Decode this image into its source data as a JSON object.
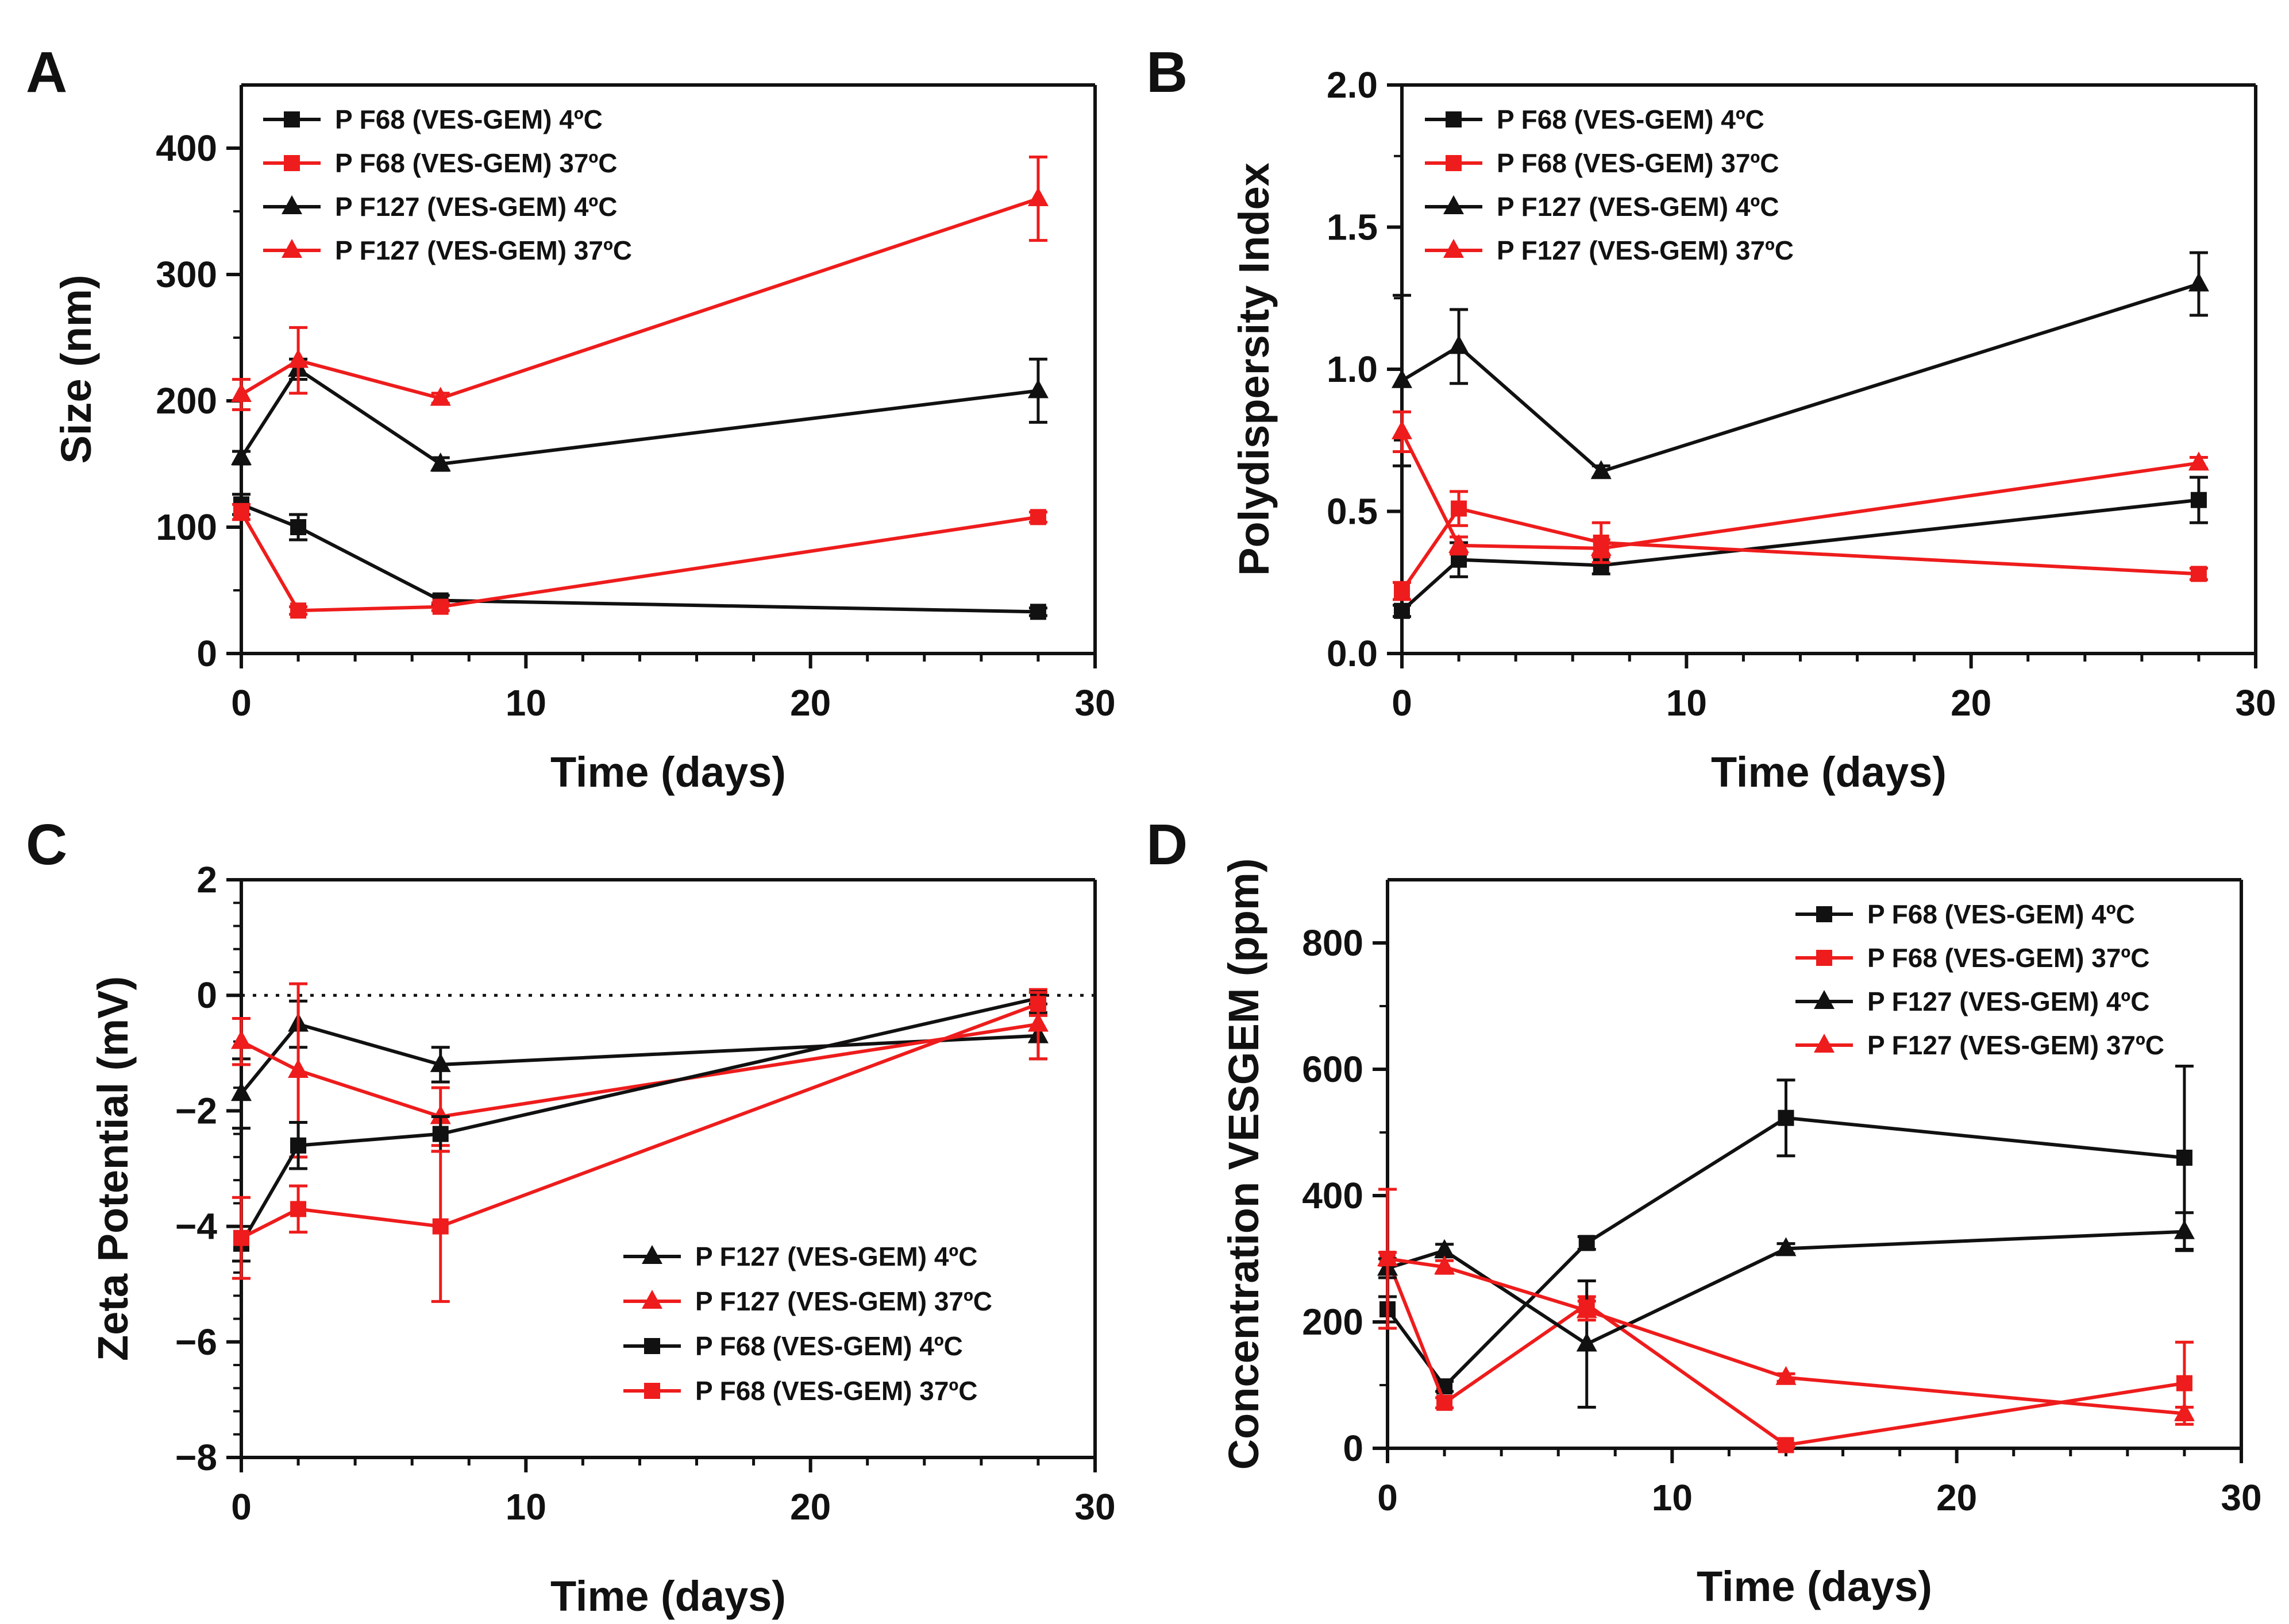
{
  "figure": {
    "colors": {
      "black": "#111111",
      "red": "#ee1c1c"
    }
  },
  "chart_data": [
    {
      "panel": "A",
      "type": "line",
      "title": "",
      "xlabel": "Time (days)",
      "ylabel": "Size (nm)",
      "xlim": [
        0,
        30
      ],
      "ylim": [
        0,
        450
      ],
      "xticks": [
        0,
        10,
        20,
        30
      ],
      "yticks": [
        0,
        100,
        200,
        300,
        400
      ],
      "zero_line": false,
      "legend_position": "top-left",
      "series": [
        {
          "name": "P F68 (VES-GEM) 4ºC",
          "color": "#111111",
          "marker": "square",
          "x": [
            0,
            2,
            7,
            28
          ],
          "y": [
            118,
            100,
            42,
            33
          ],
          "err": [
            8,
            10,
            4,
            3
          ]
        },
        {
          "name": "P F68 (VES-GEM) 37ºC",
          "color": "#ee1c1c",
          "marker": "square",
          "x": [
            0,
            2,
            7,
            28
          ],
          "y": [
            112,
            34,
            37,
            108
          ],
          "err": [
            6,
            3,
            3,
            4
          ]
        },
        {
          "name": "P F127 (VES-GEM) 4ºC",
          "color": "#111111",
          "marker": "triangle",
          "x": [
            0,
            2,
            7,
            28
          ],
          "y": [
            155,
            225,
            150,
            208
          ],
          "err": [
            5,
            8,
            5,
            25
          ]
        },
        {
          "name": "P F127 (VES-GEM) 37ºC",
          "color": "#ee1c1c",
          "marker": "triangle",
          "x": [
            0,
            2,
            7,
            28
          ],
          "y": [
            205,
            232,
            202,
            360
          ],
          "err": [
            12,
            26,
            4,
            33
          ]
        }
      ]
    },
    {
      "panel": "B",
      "type": "line",
      "title": "",
      "xlabel": "Time (days)",
      "ylabel": "Polydispersity Index",
      "xlim": [
        0,
        30
      ],
      "ylim": [
        0,
        2.0
      ],
      "xticks": [
        0,
        10,
        20,
        30
      ],
      "yticks": [
        0.0,
        0.5,
        1.0,
        1.5,
        2.0
      ],
      "zero_line": false,
      "legend_position": "top-left",
      "series": [
        {
          "name": "P F68 (VES-GEM) 4ºC",
          "color": "#111111",
          "marker": "square",
          "x": [
            0,
            2,
            7,
            28
          ],
          "y": [
            0.15,
            0.33,
            0.31,
            0.54
          ],
          "err": [
            0.02,
            0.06,
            0.03,
            0.08
          ]
        },
        {
          "name": "P F68 (VES-GEM) 37ºC",
          "color": "#ee1c1c",
          "marker": "square",
          "x": [
            0,
            2,
            7,
            28
          ],
          "y": [
            0.22,
            0.51,
            0.39,
            0.28
          ],
          "err": [
            0.03,
            0.06,
            0.07,
            0.02
          ]
        },
        {
          "name": "P F127 (VES-GEM) 4ºC",
          "color": "#111111",
          "marker": "triangle",
          "x": [
            0,
            2,
            7,
            28
          ],
          "y": [
            0.96,
            1.08,
            0.64,
            1.3
          ],
          "err": [
            0.3,
            0.13,
            0.02,
            0.11
          ]
        },
        {
          "name": "P F127 (VES-GEM) 37ºC",
          "color": "#ee1c1c",
          "marker": "triangle",
          "x": [
            0,
            2,
            7,
            28
          ],
          "y": [
            0.78,
            0.38,
            0.37,
            0.67
          ],
          "err": [
            0.07,
            0.03,
            0.03,
            0.02
          ]
        }
      ]
    },
    {
      "panel": "C",
      "type": "line",
      "title": "",
      "xlabel": "Time (days)",
      "ylabel": "Zeta Potential (mV)",
      "xlim": [
        0,
        30
      ],
      "ylim": [
        -8,
        2
      ],
      "xticks": [
        0,
        10,
        20,
        30
      ],
      "yticks": [
        -8,
        -6,
        -4,
        -2,
        0,
        2
      ],
      "ytick_labels": [
        "−8",
        "−6",
        "−4",
        "−2",
        "0",
        "2"
      ],
      "zero_line": true,
      "legend_position": "bottom-right",
      "series": [
        {
          "name": "P F127 (VES-GEM) 4ºC",
          "color": "#111111",
          "marker": "triangle",
          "x": [
            0,
            2,
            7,
            28
          ],
          "y": [
            -1.7,
            -0.5,
            -1.2,
            -0.7
          ],
          "err": [
            0.6,
            0.4,
            0.3,
            0.4
          ]
        },
        {
          "name": "P F127 (VES-GEM) 37ºC",
          "color": "#ee1c1c",
          "marker": "triangle",
          "x": [
            0,
            2,
            7,
            28
          ],
          "y": [
            -0.8,
            -1.3,
            -2.1,
            -0.5
          ],
          "err": [
            0.4,
            1.5,
            0.5,
            0.6
          ]
        },
        {
          "name": "P F68 (VES-GEM) 4ºC",
          "color": "#111111",
          "marker": "square",
          "x": [
            0,
            2,
            7,
            28
          ],
          "y": [
            -4.3,
            -2.6,
            -2.4,
            -0.05
          ],
          "err": [
            0.3,
            0.4,
            0.3,
            0.1
          ]
        },
        {
          "name": "P F68 (VES-GEM) 37ºC",
          "color": "#ee1c1c",
          "marker": "square",
          "x": [
            0,
            2,
            7,
            28
          ],
          "y": [
            -4.2,
            -3.7,
            -4.0,
            -0.15
          ],
          "err": [
            0.7,
            0.4,
            1.3,
            0.2
          ]
        }
      ]
    },
    {
      "panel": "D",
      "type": "line",
      "title": "",
      "xlabel": "Time (days)",
      "ylabel": "Concentration VESGEM (ppm)",
      "xlim": [
        0,
        30
      ],
      "ylim": [
        0,
        900
      ],
      "xticks": [
        0,
        10,
        20,
        30
      ],
      "yticks": [
        0,
        200,
        400,
        600,
        800
      ],
      "zero_line": false,
      "legend_position": "top-right",
      "series": [
        {
          "name": "P F68 (VES-GEM) 4ºC",
          "color": "#111111",
          "marker": "square",
          "x": [
            0,
            2,
            7,
            14,
            28
          ],
          "y": [
            220,
            98,
            325,
            523,
            460
          ],
          "err": [
            20,
            8,
            10,
            60,
            145
          ]
        },
        {
          "name": "P F68 (VES-GEM) 37ºC",
          "color": "#ee1c1c",
          "marker": "square",
          "x": [
            0,
            2,
            7,
            14,
            28
          ],
          "y": [
            300,
            72,
            228,
            5,
            103
          ],
          "err": [
            10,
            8,
            12,
            3,
            65
          ]
        },
        {
          "name": "P F127 (VES-GEM) 4ºC",
          "color": "#111111",
          "marker": "triangle",
          "x": [
            0,
            2,
            7,
            14,
            28
          ],
          "y": [
            285,
            313,
            165,
            316,
            343
          ],
          "err": [
            15,
            10,
            100,
            8,
            30
          ]
        },
        {
          "name": "P F127 (VES-GEM) 37ºC",
          "color": "#ee1c1c",
          "marker": "triangle",
          "x": [
            0,
            2,
            7,
            14,
            28
          ],
          "y": [
            300,
            287,
            218,
            112,
            55
          ],
          "err": [
            110,
            10,
            15,
            6,
            10
          ]
        }
      ]
    }
  ]
}
